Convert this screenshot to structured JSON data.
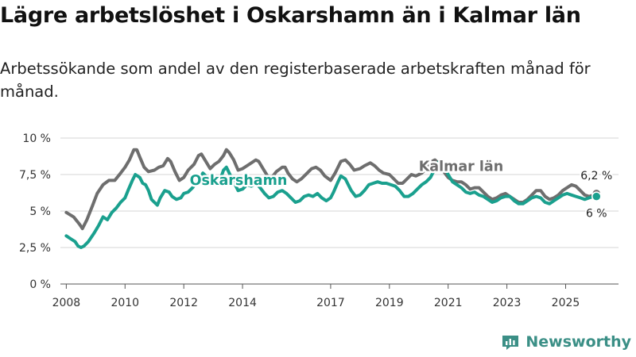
{
  "header": {
    "title": "Lägre arbetslöshet i Oskarshamn än i Kalmar län",
    "subtitle": "Arbetssökande som andel av den registerbaserade arbetskraften månad för månad."
  },
  "brand": {
    "name": "Newsworthy"
  },
  "chart_data": {
    "type": "line",
    "title": "Lägre arbetslöshet i Oskarshamn än i Kalmar län",
    "subtitle": "Arbetssökande som andel av den registerbaserade arbetskraften månad för månad.",
    "xlabel": "",
    "ylabel": "",
    "xlim": [
      2007.8,
      2026.8
    ],
    "ylim": [
      0,
      10
    ],
    "grid": "horizontal",
    "x_ticks": [
      2008,
      2010,
      2012,
      2014,
      2017,
      2019,
      2021,
      2023,
      2025
    ],
    "x_tick_labels": [
      "2008",
      "2010",
      "2012",
      "2014",
      "2017",
      "2019",
      "2021",
      "2023",
      "2025"
    ],
    "y_ticks": [
      0,
      2.5,
      5,
      7.5,
      10
    ],
    "y_tick_labels": [
      "0 %",
      "2,5 %",
      "5 %",
      "7,5 %",
      "10 %"
    ],
    "series": [
      {
        "name": "Kalmar län",
        "color": "#6e6e6e",
        "end_label": "6,2 %",
        "points": [
          [
            2008.0,
            4.9
          ],
          [
            2008.25,
            4.6
          ],
          [
            2008.45,
            4.1
          ],
          [
            2008.55,
            3.8
          ],
          [
            2008.7,
            4.4
          ],
          [
            2008.9,
            5.4
          ],
          [
            2009.05,
            6.2
          ],
          [
            2009.25,
            6.8
          ],
          [
            2009.45,
            7.1
          ],
          [
            2009.65,
            7.1
          ],
          [
            2009.85,
            7.6
          ],
          [
            2010.0,
            8.0
          ],
          [
            2010.15,
            8.5
          ],
          [
            2010.3,
            9.2
          ],
          [
            2010.4,
            9.2
          ],
          [
            2010.5,
            8.7
          ],
          [
            2010.65,
            8.0
          ],
          [
            2010.8,
            7.7
          ],
          [
            2011.0,
            7.8
          ],
          [
            2011.15,
            8.0
          ],
          [
            2011.3,
            8.1
          ],
          [
            2011.45,
            8.6
          ],
          [
            2011.55,
            8.4
          ],
          [
            2011.7,
            7.7
          ],
          [
            2011.85,
            7.1
          ],
          [
            2012.0,
            7.3
          ],
          [
            2012.15,
            7.8
          ],
          [
            2012.35,
            8.2
          ],
          [
            2012.5,
            8.8
          ],
          [
            2012.6,
            8.9
          ],
          [
            2012.75,
            8.4
          ],
          [
            2012.9,
            7.9
          ],
          [
            2013.05,
            8.2
          ],
          [
            2013.2,
            8.4
          ],
          [
            2013.35,
            8.8
          ],
          [
            2013.45,
            9.2
          ],
          [
            2013.55,
            9.0
          ],
          [
            2013.7,
            8.5
          ],
          [
            2013.85,
            7.8
          ],
          [
            2014.0,
            7.9
          ],
          [
            2014.15,
            8.1
          ],
          [
            2014.3,
            8.3
          ],
          [
            2014.45,
            8.5
          ],
          [
            2014.55,
            8.4
          ],
          [
            2014.7,
            7.9
          ],
          [
            2014.85,
            7.4
          ],
          [
            2015.0,
            7.3
          ],
          [
            2015.15,
            7.7
          ],
          [
            2015.35,
            8.0
          ],
          [
            2015.45,
            8.0
          ],
          [
            2015.55,
            7.6
          ],
          [
            2015.7,
            7.2
          ],
          [
            2015.85,
            7.0
          ],
          [
            2016.0,
            7.2
          ],
          [
            2016.2,
            7.6
          ],
          [
            2016.35,
            7.9
          ],
          [
            2016.5,
            8.0
          ],
          [
            2016.65,
            7.8
          ],
          [
            2016.8,
            7.4
          ],
          [
            2017.0,
            7.1
          ],
          [
            2017.15,
            7.6
          ],
          [
            2017.35,
            8.4
          ],
          [
            2017.5,
            8.5
          ],
          [
            2017.65,
            8.2
          ],
          [
            2017.8,
            7.8
          ],
          [
            2018.0,
            7.9
          ],
          [
            2018.15,
            8.1
          ],
          [
            2018.35,
            8.3
          ],
          [
            2018.5,
            8.1
          ],
          [
            2018.65,
            7.8
          ],
          [
            2018.8,
            7.6
          ],
          [
            2019.0,
            7.5
          ],
          [
            2019.15,
            7.2
          ],
          [
            2019.3,
            6.9
          ],
          [
            2019.45,
            6.9
          ],
          [
            2019.6,
            7.2
          ],
          [
            2019.75,
            7.5
          ],
          [
            2019.9,
            7.4
          ],
          [
            2020.1,
            7.6
          ],
          [
            2020.3,
            8.0
          ],
          [
            2020.45,
            8.4
          ],
          [
            2020.55,
            8.5
          ],
          [
            2020.7,
            8.2
          ],
          [
            2020.85,
            7.7
          ],
          [
            2021.0,
            7.3
          ],
          [
            2021.15,
            7.1
          ],
          [
            2021.3,
            7.0
          ],
          [
            2021.45,
            7.0
          ],
          [
            2021.6,
            6.8
          ],
          [
            2021.75,
            6.5
          ],
          [
            2021.9,
            6.6
          ],
          [
            2022.05,
            6.6
          ],
          [
            2022.2,
            6.3
          ],
          [
            2022.35,
            6.0
          ],
          [
            2022.5,
            5.8
          ],
          [
            2022.65,
            5.9
          ],
          [
            2022.8,
            6.1
          ],
          [
            2022.95,
            6.2
          ],
          [
            2023.1,
            6.0
          ],
          [
            2023.25,
            5.8
          ],
          [
            2023.4,
            5.6
          ],
          [
            2023.55,
            5.6
          ],
          [
            2023.7,
            5.8
          ],
          [
            2023.85,
            6.1
          ],
          [
            2024.0,
            6.4
          ],
          [
            2024.15,
            6.4
          ],
          [
            2024.3,
            6.0
          ],
          [
            2024.45,
            5.8
          ],
          [
            2024.6,
            5.9
          ],
          [
            2024.75,
            6.1
          ],
          [
            2024.9,
            6.4
          ],
          [
            2025.05,
            6.6
          ],
          [
            2025.2,
            6.8
          ],
          [
            2025.35,
            6.7
          ],
          [
            2025.5,
            6.4
          ],
          [
            2025.65,
            6.1
          ],
          [
            2025.8,
            6.0
          ],
          [
            2025.95,
            6.1
          ],
          [
            2026.05,
            6.2
          ]
        ]
      },
      {
        "name": "Oskarshamn",
        "color": "#1aa08e",
        "end_label": "6 %",
        "points": [
          [
            2008.0,
            3.3
          ],
          [
            2008.15,
            3.1
          ],
          [
            2008.3,
            2.9
          ],
          [
            2008.4,
            2.6
          ],
          [
            2008.5,
            2.5
          ],
          [
            2008.6,
            2.6
          ],
          [
            2008.75,
            2.9
          ],
          [
            2008.95,
            3.5
          ],
          [
            2009.1,
            4.0
          ],
          [
            2009.25,
            4.6
          ],
          [
            2009.4,
            4.4
          ],
          [
            2009.55,
            4.9
          ],
          [
            2009.7,
            5.2
          ],
          [
            2009.85,
            5.6
          ],
          [
            2010.0,
            5.9
          ],
          [
            2010.1,
            6.4
          ],
          [
            2010.25,
            7.1
          ],
          [
            2010.35,
            7.5
          ],
          [
            2010.5,
            7.3
          ],
          [
            2010.6,
            6.9
          ],
          [
            2010.7,
            6.8
          ],
          [
            2010.8,
            6.4
          ],
          [
            2010.9,
            5.8
          ],
          [
            2011.0,
            5.6
          ],
          [
            2011.1,
            5.4
          ],
          [
            2011.2,
            5.9
          ],
          [
            2011.35,
            6.4
          ],
          [
            2011.5,
            6.3
          ],
          [
            2011.6,
            6.0
          ],
          [
            2011.75,
            5.8
          ],
          [
            2011.9,
            5.9
          ],
          [
            2012.0,
            6.2
          ],
          [
            2012.15,
            6.3
          ],
          [
            2012.3,
            6.6
          ],
          [
            2012.45,
            7.0
          ],
          [
            2012.55,
            7.2
          ],
          [
            2012.65,
            7.6
          ],
          [
            2012.8,
            7.3
          ],
          [
            2012.95,
            6.9
          ],
          [
            2013.1,
            6.8
          ],
          [
            2013.25,
            7.2
          ],
          [
            2013.35,
            7.8
          ],
          [
            2013.45,
            8.0
          ],
          [
            2013.55,
            7.6
          ],
          [
            2013.7,
            7.0
          ],
          [
            2013.85,
            6.4
          ],
          [
            2014.0,
            6.5
          ],
          [
            2014.15,
            6.8
          ],
          [
            2014.3,
            6.7
          ],
          [
            2014.45,
            6.9
          ],
          [
            2014.6,
            6.6
          ],
          [
            2014.75,
            6.2
          ],
          [
            2014.9,
            5.9
          ],
          [
            2015.05,
            6.0
          ],
          [
            2015.2,
            6.3
          ],
          [
            2015.35,
            6.4
          ],
          [
            2015.5,
            6.2
          ],
          [
            2015.65,
            5.9
          ],
          [
            2015.8,
            5.6
          ],
          [
            2015.95,
            5.7
          ],
          [
            2016.1,
            6.0
          ],
          [
            2016.25,
            6.1
          ],
          [
            2016.4,
            6.0
          ],
          [
            2016.55,
            6.2
          ],
          [
            2016.7,
            5.9
          ],
          [
            2016.85,
            5.7
          ],
          [
            2017.0,
            5.9
          ],
          [
            2017.1,
            6.3
          ],
          [
            2017.25,
            7.0
          ],
          [
            2017.35,
            7.4
          ],
          [
            2017.5,
            7.2
          ],
          [
            2017.6,
            6.8
          ],
          [
            2017.7,
            6.4
          ],
          [
            2017.85,
            6.0
          ],
          [
            2018.0,
            6.1
          ],
          [
            2018.15,
            6.4
          ],
          [
            2018.3,
            6.8
          ],
          [
            2018.45,
            6.9
          ],
          [
            2018.6,
            7.0
          ],
          [
            2018.75,
            6.9
          ],
          [
            2018.9,
            6.9
          ],
          [
            2019.05,
            6.8
          ],
          [
            2019.2,
            6.7
          ],
          [
            2019.35,
            6.4
          ],
          [
            2019.5,
            6.0
          ],
          [
            2019.65,
            6.0
          ],
          [
            2019.8,
            6.2
          ],
          [
            2019.95,
            6.5
          ],
          [
            2020.1,
            6.8
          ],
          [
            2020.25,
            7.0
          ],
          [
            2020.4,
            7.3
          ],
          [
            2020.55,
            7.9
          ],
          [
            2020.7,
            8.4
          ],
          [
            2020.85,
            8.1
          ],
          [
            2021.0,
            7.5
          ],
          [
            2021.15,
            7.0
          ],
          [
            2021.3,
            6.8
          ],
          [
            2021.45,
            6.6
          ],
          [
            2021.6,
            6.3
          ],
          [
            2021.75,
            6.2
          ],
          [
            2021.9,
            6.3
          ],
          [
            2022.05,
            6.1
          ],
          [
            2022.2,
            6.0
          ],
          [
            2022.35,
            5.8
          ],
          [
            2022.5,
            5.6
          ],
          [
            2022.65,
            5.7
          ],
          [
            2022.8,
            5.9
          ],
          [
            2022.95,
            6.0
          ],
          [
            2023.1,
            6.0
          ],
          [
            2023.25,
            5.7
          ],
          [
            2023.4,
            5.5
          ],
          [
            2023.55,
            5.5
          ],
          [
            2023.7,
            5.7
          ],
          [
            2023.85,
            5.9
          ],
          [
            2024.0,
            6.0
          ],
          [
            2024.15,
            5.9
          ],
          [
            2024.3,
            5.6
          ],
          [
            2024.45,
            5.5
          ],
          [
            2024.6,
            5.7
          ],
          [
            2024.75,
            5.9
          ],
          [
            2024.9,
            6.1
          ],
          [
            2025.05,
            6.2
          ],
          [
            2025.2,
            6.1
          ],
          [
            2025.35,
            6.0
          ],
          [
            2025.5,
            5.9
          ],
          [
            2025.65,
            5.8
          ],
          [
            2025.8,
            5.9
          ],
          [
            2025.95,
            6.0
          ],
          [
            2026.05,
            6.0
          ]
        ]
      }
    ],
    "annotations": [
      {
        "text": "Kalmar län",
        "series": "Kalmar län",
        "x": 2020.0,
        "y": 7.75
      },
      {
        "text": "Oskarshamn",
        "series": "Oskarshamn",
        "x": 2012.2,
        "y": 6.8
      }
    ]
  }
}
